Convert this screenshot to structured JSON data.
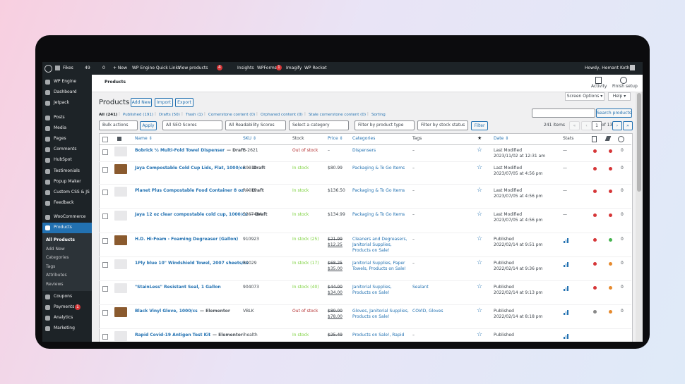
{
  "admin_bar": {
    "site": "Fikes",
    "updates": "49",
    "comments": "0",
    "new": "+ New",
    "quick_links": "WP Engine Quick Links",
    "view": "View products",
    "yoast_badge": "4",
    "insights": "Insights",
    "wpforms": "WPForms",
    "wpforms_badge": "1",
    "imagify": "Imagify",
    "wprocket": "WP Rocket",
    "greeting": "Howdy, Hemant Kothari"
  },
  "sidebar": {
    "items": [
      {
        "label": "WP Engine"
      },
      {
        "label": "Dashboard"
      },
      {
        "label": "Jetpack"
      },
      {
        "label": "Posts"
      },
      {
        "label": "Media"
      },
      {
        "label": "Pages"
      },
      {
        "label": "Comments"
      },
      {
        "label": "HubSpot"
      },
      {
        "label": "Testimonials"
      },
      {
        "label": "Popup Maker"
      },
      {
        "label": "Custom CSS & JS"
      },
      {
        "label": "Feedback"
      },
      {
        "label": "WooCommerce"
      },
      {
        "label": "Products"
      },
      {
        "label": "Coupons"
      },
      {
        "label": "Payments",
        "badge": "1"
      },
      {
        "label": "Analytics"
      },
      {
        "label": "Marketing"
      }
    ],
    "submenu": [
      "All Products",
      "Add New",
      "Categories",
      "Tags",
      "Attributes",
      "Reviews"
    ]
  },
  "header": {
    "breadcrumb": "Products",
    "activity": "Activity",
    "finish": "Finish setup",
    "screen_options": "Screen Options ▾",
    "help": "Help ▾"
  },
  "page": {
    "title": "Products",
    "buttons": [
      "Add New",
      "Import",
      "Export"
    ],
    "views": [
      "All (241)",
      "Published (191)",
      "Drafts (50)",
      "Trash (1)",
      "Cornerstone content (0)",
      "Orphaned content (0)",
      "Stale cornerstone content (0)",
      "Sorting"
    ],
    "search_button": "Search products",
    "filters": [
      "Bulk actions",
      "Apply",
      "All SEO Scores",
      "All Readability Scores",
      "Select a category",
      "Filter by product type",
      "Filter by stock status",
      "Filter"
    ],
    "pagination": {
      "items": "241 items",
      "first": "«",
      "prev": "‹",
      "page": "1",
      "of": "of 13",
      "next": "›",
      "last": "»"
    }
  },
  "table": {
    "columns": [
      "Name ⇕",
      "SKU ⇕",
      "Stock",
      "Price ⇕",
      "Categories",
      "Tags",
      "Date ⇕",
      "Stats"
    ],
    "rows": [
      {
        "name": "Bobrick ½ Multi-Fold Towel Dispenser",
        "state": "— Draft",
        "sku": "B-2621",
        "stock": "Out of stock",
        "price": "–",
        "categories": "Dispensers",
        "tags": "–",
        "date_status": "Last Modified",
        "date": "2023/11/02 at 12:31 am",
        "stats": "—",
        "seo": [
          "#d63638",
          "#d63638"
        ],
        "count": "0"
      },
      {
        "name": "Jaya Compostable Cold Cup Lids, Flat, 1000/cs",
        "state": "— Draft",
        "sku": "R0010",
        "stock": "In stock",
        "price": "$80.99",
        "categories": "Packaging & To Go Items",
        "tags": "–",
        "date_status": "Last Modified",
        "date": "2023/07/05 at 4:56 pm",
        "stats": "—",
        "seo": [
          "#d63638",
          "#d63638"
        ],
        "count": "0"
      },
      {
        "name": "Planet Plus Compostable Food Container 8 oz",
        "state": "— Draft",
        "sku": "R0015",
        "stock": "In stock",
        "price": "$136.50",
        "categories": "Packaging & To Go Items",
        "tags": "–",
        "date_status": "Last Modified",
        "date": "2023/07/05 at 4:56 pm",
        "stats": "—",
        "seo": [
          "#d63638",
          "#d63638"
        ],
        "count": "0"
      },
      {
        "name": "Jaya 12 oz clear compostable cold cup, 1000/cs",
        "state": "— Draft",
        "sku": "5367484",
        "stock": "In stock",
        "price": "$134.99",
        "categories": "Packaging & To Go Items",
        "tags": "–",
        "date_status": "Last Modified",
        "date": "2023/07/05 at 4:56 pm",
        "stats": "—",
        "seo": [
          "#d63638",
          "#d63638"
        ],
        "count": "0"
      },
      {
        "name": "H.D. Hi-Foam - Foaming Degreaser (Gallon)",
        "sku": "910923",
        "stock": "In stock (25)",
        "price_old": "$21.99",
        "price": "$12.25",
        "categories": "Cleaners and Degreasers, Janitorial Supplies, Products on Sale!",
        "tags": "–",
        "date_status": "Published",
        "date": "2022/02/14 at 9:51 pm",
        "seo": [
          "#d63638",
          "#46b450"
        ],
        "count": "0"
      },
      {
        "name": "1Ply blue 10\" Windshield Towel, 2007 sheets/cs",
        "sku": "R0029",
        "stock": "In stock (17)",
        "price_old": "$68.25",
        "price": "$35.00",
        "categories": "Janitorial Supplies, Paper Towels, Products on Sale!",
        "tags": "–",
        "date_status": "Published",
        "date": "2022/02/14 at 9:36 pm",
        "seo": [
          "#d63638",
          "#e68a2e"
        ],
        "count": "0"
      },
      {
        "name": "\"StainLess\" Resistant Seal, 1 Gallon",
        "sku": "904073",
        "stock": "In stock (40)",
        "price_old": "$44.00",
        "price": "$34.00",
        "categories": "Janitorial Supplies, Products on Sale!",
        "tags": "Sealant",
        "date_status": "Published",
        "date": "2022/02/14 at 9:13 pm",
        "seo": [
          "#d63638",
          "#e68a2e"
        ],
        "count": "0"
      },
      {
        "name": "Black Vinyl Glove, 1000/cs",
        "state": "— Elementor",
        "sku": "VBLK",
        "stock": "Out of stock",
        "price_old": "$89.00",
        "price": "$78.00",
        "categories": "Gloves, Janitorial Supplies, Products on Sale!",
        "tags": "COVID, Gloves",
        "date_status": "Published",
        "date": "2022/02/14 at 8:18 pm",
        "seo": [
          "#888888",
          "#e68a2e"
        ],
        "count": "0"
      },
      {
        "name": "Rapid Covid-19 Antigen Test Kit",
        "state": "— Elementor",
        "sku": "ihealth",
        "stock": "In stock",
        "price_old": "$25.49",
        "categories": "Products on Sale!, Rapid",
        "tags": "–",
        "date_status": "Published"
      }
    ]
  }
}
